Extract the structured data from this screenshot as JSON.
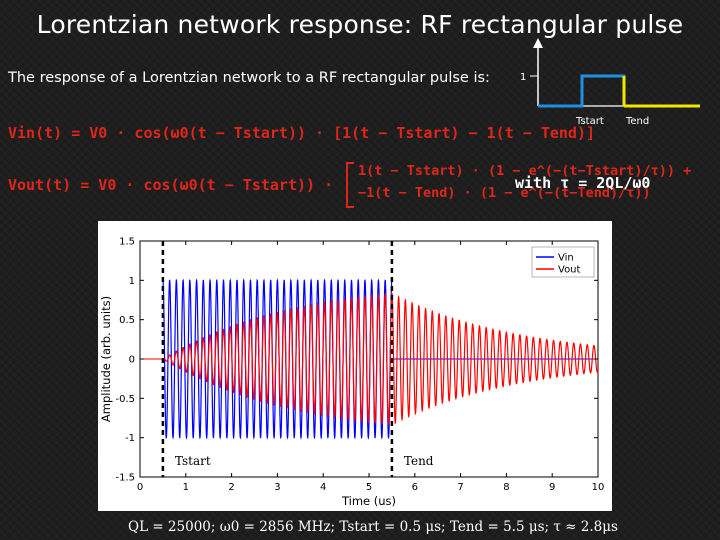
{
  "slide": {
    "title": "Lorentzian network response: RF rectangular pulse",
    "intro": "The response of a Lorentzian network to a RF rectangular pulse is:",
    "eq_in": "Vin(t) = V0 · cos(ω0(t − Tstart)) · [1(t − Tstart) − 1(t − Tend)]",
    "eq_out_prefix": "Vout(t) = V0 · cos(ω0(t − Tstart)) ·",
    "eq_out_line1": "1(t − Tstart) · (1 − e^(−(t−Tstart)/τ)) +",
    "eq_out_line2": "−1(t − Tend) · (1 − e^(−(t−Tend)/τ))",
    "with_tau": "with τ = 2QL/ω0",
    "caption": "QL = 25000; ω0 = 2856 MHz; Tstart = 0.5 μs; Tend = 5.5 μs; τ ≈ 2.8μs"
  },
  "schematic": {
    "level_label": "1",
    "t_start_label": "Tstart",
    "t_end_label": "Tend",
    "colors": {
      "pulse": "#1f8fe0",
      "after": "#f2e600"
    }
  },
  "chart_data": {
    "type": "line",
    "xlabel": "Time (us)",
    "ylabel": "Amplitude (arb. units)",
    "xlim": [
      0,
      10
    ],
    "ylim": [
      -1.5,
      1.5
    ],
    "x_ticks": [
      "0",
      "1",
      "2",
      "3",
      "4",
      "5",
      "6",
      "7",
      "8",
      "9",
      "10"
    ],
    "y_ticks": [
      "1.5",
      "1",
      "0.5",
      "0",
      "-0.5",
      "-1",
      "-1.5"
    ],
    "series": [
      {
        "name": "Vin",
        "color": "#0000ff",
        "t_start": 0.5,
        "t_end": 5.5,
        "amplitude": 1.0
      },
      {
        "name": "Vout",
        "color": "#ff0000",
        "t_start": 0.5,
        "t_end": 5.5,
        "tau": 2.8
      }
    ],
    "annotations": [
      {
        "label": "Tstart",
        "x": 0.5
      },
      {
        "label": "Tend",
        "x": 5.5
      }
    ],
    "legend": "top-right"
  }
}
